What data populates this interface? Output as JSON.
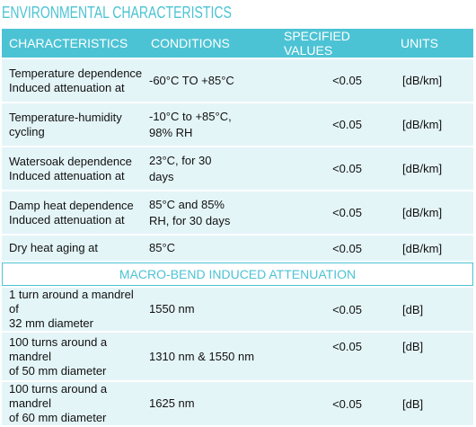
{
  "title": "ENVIRONMENTAL CHARACTERISTICS",
  "headers": [
    "CHARACTERISTICS",
    "CONDITIONS",
    "SPECIFIED VALUES",
    "UNITS"
  ],
  "rows": [
    {
      "char": [
        "Temperature dependence",
        "Induced attenuation at"
      ],
      "cond": [
        "-60°C TO +85°C"
      ],
      "value": "<0.05",
      "unit": "[dB/km]"
    },
    {
      "char": [
        "Temperature-humidity",
        "cycling"
      ],
      "cond": [
        "-10°C to +85°C,",
        "98% RH"
      ],
      "value": "<0.05",
      "unit": "[dB/km]"
    },
    {
      "char": [
        "Watersoak dependence",
        "Induced attenuation at"
      ],
      "cond": [
        "23°C, for 30",
        "days"
      ],
      "value": "<0.05",
      "unit": "[dB/km]"
    },
    {
      "char": [
        "Damp heat dependence",
        "Induced attenuation at"
      ],
      "cond": [
        "85°C and 85%",
        "RH, for 30 days"
      ],
      "value": "<0.05",
      "unit": "[dB/km]"
    },
    {
      "char": [
        "Dry heat aging at"
      ],
      "cond": [
        "85°C"
      ],
      "value": "<0.05",
      "unit": "[dB/km]"
    }
  ],
  "subheader": "MACRO-BEND INDUCED ATTENUATION",
  "macro_rows": [
    {
      "char": [
        "1 turn around a mandrel of",
        "32 mm diameter"
      ],
      "cond": [
        "1550 nm"
      ],
      "value": "<0.05",
      "unit": "[dB]"
    },
    {
      "char": [
        "100 turns around a mandrel",
        "of 50 mm diameter"
      ],
      "cond": [
        "1310 nm & 1550 nm"
      ],
      "value": "<0.05",
      "unit": "[dB]"
    },
    {
      "char": [
        "100 turns around a mandrel",
        "of 60 mm diameter"
      ],
      "cond": [
        "1625 nm"
      ],
      "value": "<0.05",
      "unit": "[dB]"
    }
  ]
}
